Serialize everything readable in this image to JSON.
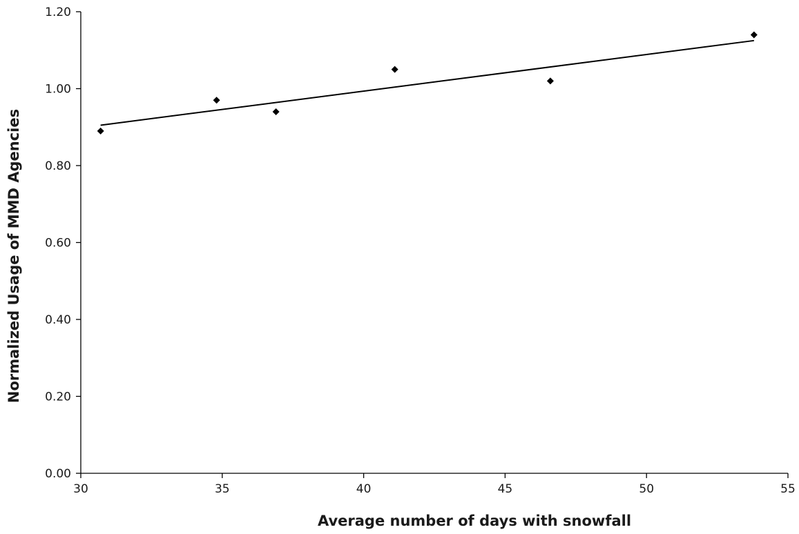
{
  "chart_data": {
    "type": "scatter",
    "title": "",
    "xlabel": "Average number of days with snowfall",
    "ylabel": "Normalized Usage of MMD Agencies",
    "xlim": [
      30,
      55
    ],
    "ylim": [
      0.0,
      1.2
    ],
    "xticks": [
      "30",
      "35",
      "40",
      "45",
      "50",
      "55"
    ],
    "yticks": [
      "0.00",
      "0.20",
      "0.40",
      "0.60",
      "0.80",
      "1.00",
      "1.20"
    ],
    "grid": false,
    "legend": "none",
    "series": [
      {
        "points": [
          {
            "x": 30.7,
            "y": 0.89
          },
          {
            "x": 34.8,
            "y": 0.97
          },
          {
            "x": 36.9,
            "y": 0.94
          },
          {
            "x": 41.1,
            "y": 1.05
          },
          {
            "x": 46.6,
            "y": 1.02
          },
          {
            "x": 53.8,
            "y": 1.14
          }
        ],
        "marker": "diamond",
        "color": "#000000"
      }
    ],
    "trendline": {
      "type": "linear",
      "x_range": [
        30.7,
        53.8
      ],
      "y_range": [
        0.905,
        1.125
      ],
      "color": "#000000"
    }
  }
}
